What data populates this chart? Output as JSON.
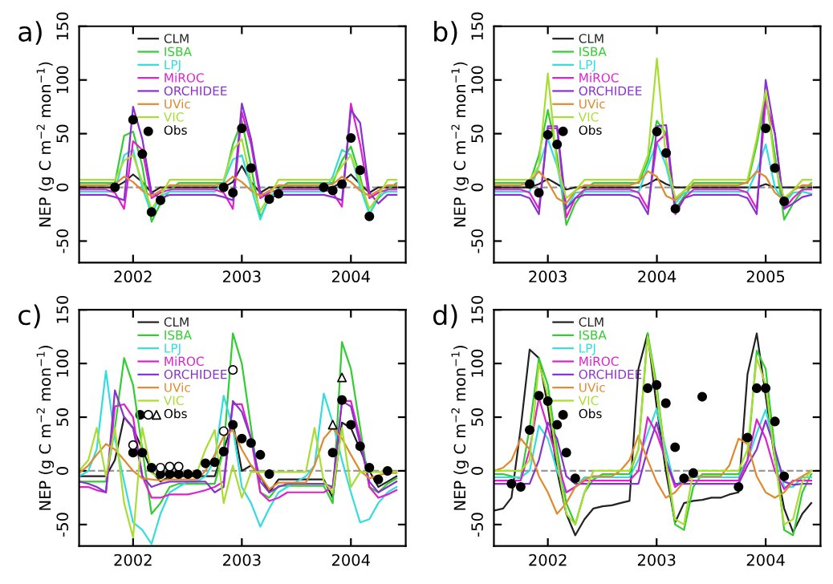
{
  "chart_data": [
    {
      "type": "line",
      "title": "a)",
      "ylabel": "NEP (g C m$^{−2}$ mon$^{−1}$)",
      "xlim": [
        "2002-01-01",
        "2005-01-01"
      ],
      "xticks": [
        {
          "value": "2002-07-01",
          "label": "2002"
        },
        {
          "value": "2003-07-01",
          "label": "2003"
        },
        {
          "value": "2004-07-01",
          "label": "2004"
        }
      ],
      "ylim": [
        -70,
        150
      ],
      "yticks": [
        -50,
        0,
        50,
        100,
        150
      ],
      "legend": "top",
      "ref_lines": [
        {
          "axis": "y",
          "value": 0,
          "label": null,
          "color": "#999999",
          "line_style": "dashed"
        }
      ],
      "x": [
        "2002-01",
        "2002-02",
        "2002-03",
        "2002-04",
        "2002-05",
        "2002-06",
        "2002-07",
        "2002-08",
        "2002-09",
        "2002-10",
        "2002-11",
        "2002-12",
        "2003-01",
        "2003-02",
        "2003-03",
        "2003-04",
        "2003-05",
        "2003-06",
        "2003-07",
        "2003-08",
        "2003-09",
        "2003-10",
        "2003-11",
        "2003-12",
        "2004-01",
        "2004-02",
        "2004-03",
        "2004-04",
        "2004-05",
        "2004-06",
        "2004-07",
        "2004-08",
        "2004-09",
        "2004-10",
        "2004-11",
        "2004-12"
      ],
      "series": [
        {
          "name": "CLM",
          "color": "#222222",
          "values": [
            0,
            0,
            0,
            0,
            0,
            5,
            12,
            5,
            -5,
            0,
            0,
            0,
            0,
            0,
            0,
            0,
            0,
            5,
            20,
            5,
            -5,
            0,
            0,
            0,
            0,
            0,
            0,
            0,
            0,
            5,
            12,
            3,
            -5,
            0,
            0,
            0
          ]
        },
        {
          "name": "ISBA",
          "color": "#33cc33",
          "values": [
            4,
            4,
            4,
            4,
            4,
            48,
            52,
            20,
            -32,
            -15,
            -3,
            4,
            4,
            4,
            4,
            4,
            4,
            40,
            62,
            20,
            -28,
            -10,
            -2,
            4,
            4,
            4,
            4,
            4,
            4,
            25,
            38,
            10,
            -25,
            -10,
            -2,
            4
          ]
        },
        {
          "name": "LPJ",
          "color": "#33dddd",
          "values": [
            -4,
            -4,
            -4,
            -4,
            -4,
            30,
            35,
            0,
            -25,
            -8,
            -4,
            -4,
            -4,
            -4,
            -4,
            -4,
            5,
            26,
            30,
            0,
            -30,
            -8,
            -4,
            -4,
            -4,
            -4,
            -4,
            -4,
            10,
            35,
            30,
            0,
            -25,
            -8,
            -4,
            -4
          ]
        },
        {
          "name": "MiROC",
          "color": "#dd22cc",
          "values": [
            -2,
            -2,
            -2,
            -2,
            -5,
            -20,
            43,
            35,
            -10,
            -5,
            -2,
            -2,
            -2,
            -2,
            -2,
            -2,
            -5,
            -20,
            70,
            40,
            -10,
            -5,
            -2,
            -2,
            -2,
            -2,
            -2,
            -2,
            -5,
            -18,
            78,
            40,
            -10,
            -5,
            -2,
            -2
          ]
        },
        {
          "name": "ORCHIDEE",
          "color": "#8833cc",
          "values": [
            -7,
            -7,
            -7,
            -7,
            -9,
            -12,
            75,
            45,
            -5,
            -10,
            -7,
            -7,
            -7,
            -7,
            -7,
            -7,
            -9,
            -12,
            78,
            45,
            -5,
            -10,
            -7,
            -7,
            -7,
            -7,
            -7,
            -7,
            -9,
            -12,
            72,
            60,
            -5,
            -15,
            -7,
            -7
          ]
        },
        {
          "name": "UVic",
          "color": "#e08a30",
          "values": [
            2,
            2,
            2,
            2,
            3,
            10,
            5,
            -3,
            -8,
            -3,
            2,
            2,
            2,
            2,
            2,
            2,
            3,
            10,
            5,
            -3,
            -8,
            -3,
            2,
            2,
            2,
            2,
            2,
            2,
            3,
            10,
            5,
            -3,
            -8,
            -3,
            2,
            2
          ]
        },
        {
          "name": "VIC",
          "color": "#aadd33",
          "values": [
            7,
            7,
            7,
            7,
            7,
            25,
            30,
            5,
            -20,
            -8,
            7,
            7,
            7,
            7,
            7,
            7,
            7,
            35,
            45,
            5,
            -22,
            -8,
            7,
            7,
            7,
            7,
            7,
            7,
            7,
            20,
            30,
            5,
            -20,
            -8,
            7,
            7
          ]
        },
        {
          "name": "Obs",
          "type": "scatter",
          "marker": "circle",
          "color": "#000000",
          "values": [
            null,
            null,
            null,
            null,
            0,
            null,
            63,
            31,
            -23,
            -12,
            null,
            null,
            null,
            null,
            null,
            null,
            0,
            -5,
            55,
            18,
            null,
            -11,
            -6,
            null,
            null,
            null,
            null,
            0,
            -3,
            3,
            46,
            16,
            -27,
            null,
            null,
            null
          ]
        }
      ]
    },
    {
      "type": "line",
      "title": "b)",
      "ylabel": "NEP (g C m$^{−2}$ mon$^{−1}$)",
      "xlim": [
        "2003-01-01",
        "2006-01-01"
      ],
      "xticks": [
        {
          "value": "2003-07-01",
          "label": "2003"
        },
        {
          "value": "2004-07-01",
          "label": "2004"
        },
        {
          "value": "2005-07-01",
          "label": "2005"
        }
      ],
      "ylim": [
        -70,
        150
      ],
      "yticks": [
        -50,
        0,
        50,
        100,
        150
      ],
      "legend": "top",
      "ref_lines": [
        {
          "axis": "y",
          "value": 0,
          "label": null,
          "color": "#999999",
          "line_style": "dashed"
        }
      ],
      "x": [
        "2003-01",
        "2003-02",
        "2003-03",
        "2003-04",
        "2003-05",
        "2003-06",
        "2003-07",
        "2003-08",
        "2003-09",
        "2003-10",
        "2003-11",
        "2003-12",
        "2004-01",
        "2004-02",
        "2004-03",
        "2004-04",
        "2004-05",
        "2004-06",
        "2004-07",
        "2004-08",
        "2004-09",
        "2004-10",
        "2004-11",
        "2004-12",
        "2005-01",
        "2005-02",
        "2005-03",
        "2005-04",
        "2005-05",
        "2005-06",
        "2005-07",
        "2005-08",
        "2005-09",
        "2005-10",
        "2005-11",
        "2005-12"
      ],
      "series": [
        {
          "name": "CLM",
          "color": "#222222",
          "values": [
            0,
            0,
            0,
            0,
            0,
            3,
            8,
            3,
            -2,
            0,
            0,
            0,
            0,
            0,
            0,
            0,
            0,
            3,
            8,
            3,
            0,
            0,
            0,
            0,
            0,
            0,
            0,
            0,
            0,
            0,
            3,
            0,
            0,
            0,
            0,
            0
          ]
        },
        {
          "name": "ISBA",
          "color": "#33cc33",
          "values": [
            4,
            4,
            4,
            4,
            4,
            30,
            72,
            30,
            -35,
            -15,
            -3,
            4,
            4,
            4,
            4,
            4,
            4,
            25,
            62,
            50,
            -20,
            -8,
            4,
            4,
            4,
            4,
            4,
            4,
            4,
            40,
            85,
            30,
            -30,
            -15,
            -3,
            4
          ]
        },
        {
          "name": "LPJ",
          "color": "#33dddd",
          "values": [
            -4,
            -4,
            -4,
            -4,
            -4,
            20,
            45,
            20,
            -20,
            -5,
            -4,
            -4,
            -4,
            -4,
            -4,
            -4,
            -4,
            20,
            42,
            20,
            -15,
            -5,
            -4,
            -4,
            -4,
            -4,
            -4,
            -4,
            -4,
            15,
            40,
            0,
            -15,
            -5,
            -4,
            -6
          ]
        },
        {
          "name": "MiROC",
          "color": "#dd22cc",
          "values": [
            -2,
            -2,
            -2,
            -2,
            -5,
            -20,
            55,
            55,
            -28,
            -10,
            -2,
            -2,
            -2,
            -2,
            -2,
            -2,
            -5,
            -20,
            42,
            50,
            -25,
            -10,
            -2,
            -2,
            -2,
            -2,
            -2,
            -2,
            -5,
            -20,
            80,
            50,
            -20,
            -10,
            -2,
            -2
          ]
        },
        {
          "name": "ORCHIDEE",
          "color": "#8833cc",
          "values": [
            -7,
            -7,
            -7,
            -7,
            -10,
            -25,
            57,
            57,
            -20,
            -10,
            -7,
            -7,
            -7,
            -7,
            -7,
            -7,
            -10,
            -25,
            57,
            58,
            -22,
            -10,
            -7,
            -7,
            -7,
            -7,
            -7,
            -7,
            -10,
            -25,
            100,
            50,
            -20,
            -15,
            -9,
            -7
          ]
        },
        {
          "name": "UVic",
          "color": "#e08a30",
          "values": [
            2,
            2,
            2,
            2,
            5,
            15,
            5,
            -10,
            -15,
            -3,
            2,
            2,
            2,
            2,
            2,
            2,
            5,
            15,
            10,
            -8,
            -12,
            -3,
            2,
            2,
            2,
            2,
            2,
            2,
            5,
            15,
            10,
            -5,
            -12,
            -3,
            2,
            2
          ]
        },
        {
          "name": "VIC",
          "color": "#aadd33",
          "values": [
            7,
            7,
            7,
            7,
            7,
            20,
            106,
            20,
            -10,
            -3,
            7,
            7,
            7,
            7,
            7,
            7,
            7,
            30,
            120,
            25,
            -10,
            -3,
            7,
            7,
            7,
            7,
            7,
            7,
            7,
            45,
            90,
            20,
            -10,
            -3,
            7,
            7
          ]
        },
        {
          "name": "Obs",
          "type": "scatter",
          "marker": "circle",
          "color": "#000000",
          "values": [
            null,
            null,
            null,
            null,
            3,
            -5,
            49,
            40,
            null,
            null,
            null,
            null,
            null,
            null,
            null,
            null,
            null,
            null,
            52,
            32,
            -20,
            null,
            null,
            null,
            null,
            null,
            null,
            null,
            null,
            null,
            55,
            18,
            -13,
            null,
            null,
            null
          ]
        }
      ]
    },
    {
      "type": "line",
      "title": "c)",
      "ylabel": "NEP (g C m$^{−2}$ mon$^{−1}$)",
      "xlim": [
        "2002-01-01",
        "2005-01-01"
      ],
      "xticks": [
        {
          "value": "2002-07-01",
          "label": "2002"
        },
        {
          "value": "2003-07-01",
          "label": "2003"
        },
        {
          "value": "2004-07-01",
          "label": "2004"
        }
      ],
      "ylim": [
        -70,
        150
      ],
      "yticks": [
        -50,
        0,
        50,
        100,
        150
      ],
      "legend": "top",
      "ref_lines": [
        {
          "axis": "y",
          "value": 0,
          "label": null,
          "color": "#999999",
          "line_style": "dashed"
        }
      ],
      "x": [
        "2002-01",
        "2002-02",
        "2002-03",
        "2002-04",
        "2002-05",
        "2002-06",
        "2002-07",
        "2002-08",
        "2002-09",
        "2002-10",
        "2002-11",
        "2002-12",
        "2003-01",
        "2003-02",
        "2003-03",
        "2003-04",
        "2003-05",
        "2003-06",
        "2003-07",
        "2003-08",
        "2003-09",
        "2003-10",
        "2003-11",
        "2003-12",
        "2004-01",
        "2004-02",
        "2004-03",
        "2004-04",
        "2004-05",
        "2004-06",
        "2004-07",
        "2004-08",
        "2004-09",
        "2004-10",
        "2004-11",
        "2004-12"
      ],
      "series": [
        {
          "name": "CLM",
          "color": "#222222",
          "values": [
            -5,
            -5,
            -5,
            -5,
            10,
            50,
            40,
            20,
            0,
            -10,
            -5,
            -5,
            -5,
            -5,
            -5,
            -5,
            20,
            45,
            0,
            5,
            -5,
            -20,
            -8,
            -8,
            -8,
            -8,
            -8,
            -8,
            -25,
            45,
            40,
            20,
            0,
            -15,
            -10,
            -5
          ]
        },
        {
          "name": "ISBA",
          "color": "#33cc33",
          "values": [
            -10,
            -10,
            -10,
            -10,
            40,
            105,
            80,
            20,
            -40,
            -30,
            -15,
            -12,
            -12,
            -12,
            -12,
            -12,
            20,
            128,
            100,
            40,
            -20,
            -25,
            -14,
            -14,
            -14,
            -14,
            -14,
            -14,
            -30,
            120,
            95,
            40,
            -15,
            -20,
            -12,
            -7
          ]
        },
        {
          "name": "LPJ",
          "color": "#33dddd",
          "values": [
            -5,
            0,
            20,
            93,
            30,
            -10,
            -48,
            -55,
            -68,
            -40,
            -20,
            -15,
            -10,
            -10,
            -5,
            10,
            70,
            40,
            -15,
            -30,
            -52,
            -35,
            -20,
            -15,
            -10,
            -5,
            5,
            72,
            45,
            10,
            -20,
            -48,
            -45,
            -30,
            -20,
            -15
          ]
        },
        {
          "name": "MiROC",
          "color": "#dd22cc",
          "values": [
            -15,
            -15,
            -18,
            -20,
            60,
            62,
            50,
            -5,
            -25,
            -25,
            -22,
            -22,
            -22,
            -20,
            -18,
            -15,
            -10,
            62,
            62,
            30,
            -20,
            -28,
            -25,
            -20,
            -20,
            -20,
            -20,
            -20,
            -15,
            65,
            65,
            30,
            -15,
            -25,
            -22,
            -18
          ]
        },
        {
          "name": "ORCHIDEE",
          "color": "#8833cc",
          "values": [
            -10,
            -12,
            -15,
            -20,
            75,
            50,
            40,
            -5,
            -15,
            -12,
            -10,
            -10,
            -10,
            -10,
            -10,
            -20,
            -15,
            65,
            55,
            30,
            -10,
            -20,
            -15,
            -12,
            -12,
            -12,
            -12,
            -12,
            -15,
            65,
            60,
            25,
            -10,
            -20,
            -15,
            -10
          ]
        },
        {
          "name": "UVic",
          "color": "#e08a30",
          "values": [
            -2,
            5,
            15,
            25,
            20,
            10,
            0,
            -7,
            -8,
            -9,
            -8,
            -8,
            -8,
            -8,
            0,
            15,
            32,
            38,
            20,
            5,
            -5,
            -17,
            -11,
            -11,
            -11,
            -11,
            5,
            30,
            40,
            30,
            15,
            0,
            -7,
            -4,
            -2,
            -2
          ]
        },
        {
          "name": "VIC",
          "color": "#aadd33",
          "values": [
            0,
            10,
            40,
            -5,
            40,
            -30,
            -62,
            40,
            -2,
            -7,
            -1,
            -1,
            -1,
            -1,
            20,
            38,
            -30,
            5,
            -25,
            -1,
            -1,
            -1,
            -1,
            -1,
            -1,
            -1,
            40,
            -10,
            -20,
            40,
            -15,
            -1,
            -1,
            -1,
            -1,
            -1
          ]
        },
        {
          "name": "Obs",
          "type": "scatter",
          "marker": "circle",
          "color": "#000000",
          "values": [
            null,
            null,
            null,
            null,
            null,
            null,
            17,
            17,
            3,
            -3,
            -3,
            -3,
            -3,
            -3,
            7,
            8,
            18,
            43,
            30,
            26,
            15,
            -3,
            null,
            null,
            null,
            null,
            null,
            null,
            17,
            66,
            43,
            23,
            3,
            -8,
            0,
            null
          ]
        },
        {
          "type": "scatter",
          "marker": "circle",
          "color": "#ffffff",
          "values": [
            null,
            null,
            null,
            null,
            null,
            null,
            24,
            null,
            null,
            3,
            4,
            4,
            null,
            null,
            null,
            null,
            37,
            94,
            null,
            null,
            null,
            null,
            null,
            null,
            null,
            null,
            null,
            null,
            null,
            null,
            null,
            null,
            null,
            null,
            null,
            null
          ]
        },
        {
          "type": "scatter",
          "marker": "triangle",
          "color": "#ffffff",
          "values": [
            null,
            null,
            null,
            null,
            null,
            null,
            null,
            null,
            null,
            null,
            null,
            null,
            null,
            null,
            null,
            null,
            null,
            null,
            null,
            null,
            null,
            null,
            null,
            null,
            null,
            null,
            null,
            null,
            43,
            87,
            null,
            null,
            null,
            null,
            null,
            null
          ]
        }
      ]
    },
    {
      "type": "line",
      "title": "d)",
      "ylabel": "NEP (g C m$^{−2}$ mon$^{−1}$)",
      "xlim": [
        "2002-01-01",
        "2005-01-01"
      ],
      "xticks": [
        {
          "value": "2002-07-01",
          "label": "2002"
        },
        {
          "value": "2003-07-01",
          "label": "2003"
        },
        {
          "value": "2004-07-01",
          "label": "2004"
        }
      ],
      "ylim": [
        -70,
        150
      ],
      "yticks": [
        -50,
        0,
        50,
        100,
        150
      ],
      "legend": "top",
      "ref_lines": [
        {
          "axis": "y",
          "value": 0,
          "label": null,
          "color": "#999999",
          "line_style": "dashed"
        }
      ],
      "x": [
        "2002-01",
        "2002-02",
        "2002-03",
        "2002-04",
        "2002-05",
        "2002-06",
        "2002-07",
        "2002-08",
        "2002-09",
        "2002-10",
        "2002-11",
        "2002-12",
        "2003-01",
        "2003-02",
        "2003-03",
        "2003-04",
        "2003-05",
        "2003-06",
        "2003-07",
        "2003-08",
        "2003-09",
        "2003-10",
        "2003-11",
        "2003-12",
        "2004-01",
        "2004-02",
        "2004-03",
        "2004-04",
        "2004-05",
        "2004-06",
        "2004-07",
        "2004-08",
        "2004-09",
        "2004-10",
        "2004-11",
        "2004-12"
      ],
      "series": [
        {
          "name": "CLM",
          "color": "#222222",
          "values": [
            -37,
            -35,
            -25,
            40,
            113,
            105,
            60,
            0,
            -40,
            -60,
            -45,
            -35,
            -33,
            -32,
            -30,
            -28,
            95,
            128,
            60,
            0,
            -48,
            -30,
            -28,
            -27,
            -25,
            -25,
            -22,
            -20,
            90,
            128,
            70,
            10,
            -35,
            -57,
            -40,
            -30
          ]
        },
        {
          "name": "ISBA",
          "color": "#33cc33",
          "values": [
            -3,
            -3,
            -5,
            -7,
            40,
            105,
            80,
            20,
            -30,
            -50,
            -20,
            -8,
            -3,
            -3,
            -3,
            -3,
            20,
            128,
            80,
            10,
            -50,
            -55,
            -15,
            -3,
            -3,
            -3,
            -3,
            -3,
            10,
            112,
            95,
            20,
            -55,
            -60,
            -20,
            -3
          ]
        },
        {
          "name": "LPJ",
          "color": "#33dddd",
          "values": [
            -6,
            -6,
            -6,
            -6,
            0,
            42,
            30,
            0,
            -20,
            -15,
            -6,
            -6,
            -6,
            -6,
            -6,
            -6,
            10,
            35,
            58,
            20,
            -15,
            -6,
            -6,
            -6,
            -6,
            -6,
            -6,
            -6,
            10,
            35,
            57,
            20,
            -15,
            -15,
            -6,
            -6
          ]
        },
        {
          "name": "MiROC",
          "color": "#dd22cc",
          "values": [
            -9,
            -9,
            -9,
            -9,
            20,
            68,
            40,
            10,
            -20,
            -15,
            -9,
            -9,
            -9,
            -9,
            -9,
            -9,
            0,
            50,
            35,
            10,
            -15,
            -9,
            -9,
            -9,
            -9,
            -9,
            -9,
            -9,
            10,
            48,
            30,
            0,
            -17,
            -9,
            -9,
            -9
          ]
        },
        {
          "name": "ORCHIDEE",
          "color": "#8833cc",
          "values": [
            -12,
            -12,
            -12,
            -12,
            -12,
            10,
            45,
            30,
            -5,
            -12,
            -12,
            -12,
            -12,
            -12,
            -12,
            -12,
            -12,
            20,
            45,
            10,
            -12,
            -12,
            -12,
            -12,
            -12,
            -12,
            -12,
            -12,
            5,
            20,
            47,
            20,
            -10,
            -13,
            -12,
            -12
          ]
        },
        {
          "name": "UVic",
          "color": "#e08a30",
          "values": [
            0,
            3,
            10,
            30,
            20,
            -5,
            -20,
            -40,
            -30,
            -15,
            -8,
            -5,
            -5,
            -5,
            0,
            10,
            33,
            10,
            -10,
            -25,
            -20,
            -10,
            -5,
            -5,
            -5,
            -5,
            5,
            30,
            25,
            -5,
            -20,
            -25,
            -20,
            -10,
            -5,
            0
          ]
        },
        {
          "name": "VIC",
          "color": "#aadd33",
          "values": [
            0,
            0,
            0,
            0,
            10,
            100,
            70,
            10,
            -40,
            -50,
            -20,
            0,
            0,
            0,
            0,
            0,
            20,
            125,
            75,
            10,
            -45,
            -50,
            0,
            0,
            0,
            0,
            0,
            0,
            20,
            105,
            80,
            10,
            -50,
            -45,
            -10,
            0
          ]
        },
        {
          "name": "Obs",
          "type": "scatter",
          "marker": "circle",
          "color": "#000000",
          "values": [
            null,
            null,
            -12,
            -15,
            38,
            70,
            65,
            43,
            17,
            -7,
            null,
            null,
            null,
            null,
            null,
            null,
            null,
            77,
            80,
            63,
            22,
            -7,
            -2,
            69,
            null,
            null,
            null,
            -15,
            31,
            77,
            77,
            46,
            -5,
            null,
            null,
            null
          ]
        }
      ]
    }
  ]
}
